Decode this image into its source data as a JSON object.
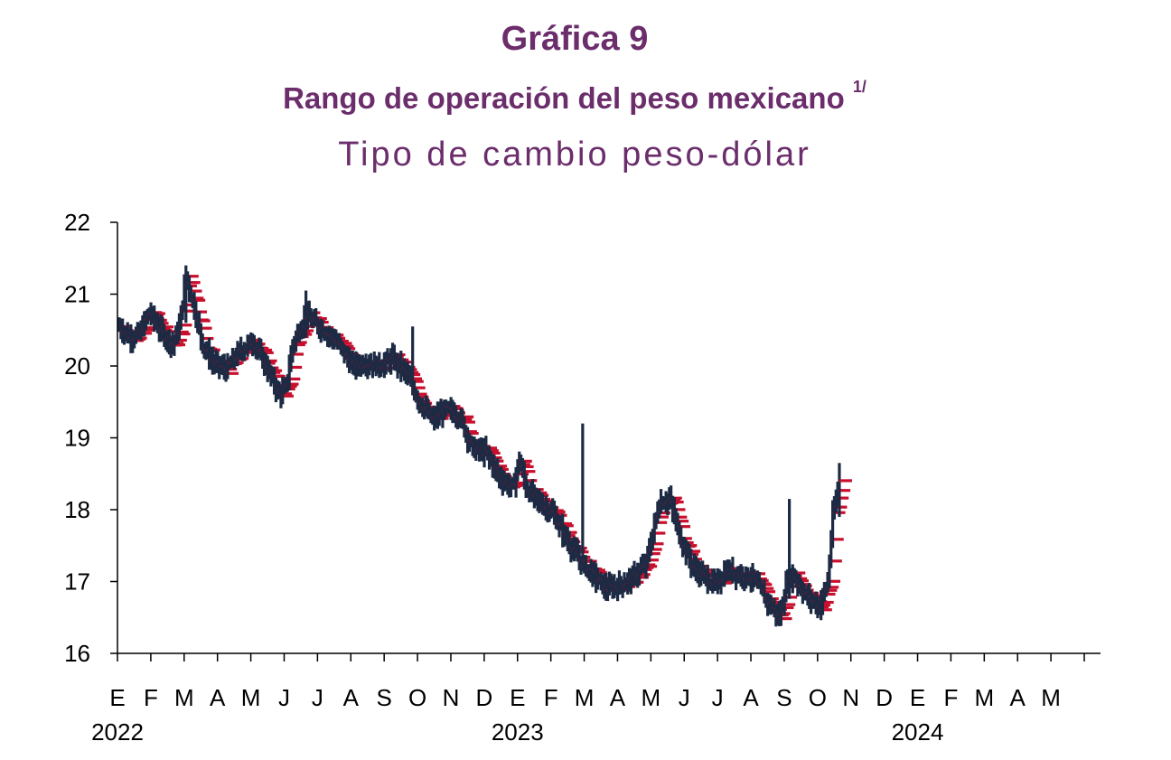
{
  "header": {
    "title": "Gráfica 9",
    "subtitle": "Rango de operación del peso mexicano",
    "subtitle_note": "1/",
    "subtitle2": "Tipo de cambio peso-dólar"
  },
  "colors": {
    "title": "#6b2d6b",
    "range_bar": "#1c2a44",
    "close_tick": "#c8102e"
  },
  "chart_data": {
    "type": "range",
    "ylim": [
      16,
      22
    ],
    "yticks": [
      "16",
      "17",
      "18",
      "19",
      "20",
      "21",
      "22"
    ],
    "month_labels": [
      "E",
      "F",
      "M",
      "A",
      "M",
      "J",
      "J",
      "A",
      "S",
      "O",
      "N",
      "D",
      "E",
      "F",
      "M",
      "A",
      "M",
      "J",
      "J",
      "A",
      "S",
      "O",
      "N",
      "D",
      "E",
      "F",
      "M",
      "A",
      "M"
    ],
    "year_labels": [
      {
        "label": "2022",
        "month_index": 0
      },
      {
        "label": "2023",
        "month_index": 12
      },
      {
        "label": "2024",
        "month_index": 24
      }
    ],
    "anchors": [
      [
        0,
        20.55
      ],
      [
        0.3,
        20.4
      ],
      [
        0.6,
        20.45
      ],
      [
        0.9,
        20.75
      ],
      [
        1.1,
        20.6
      ],
      [
        1.3,
        20.45
      ],
      [
        1.6,
        20.3
      ],
      [
        1.8,
        20.55
      ],
      [
        2.0,
        21.25
      ],
      [
        2.2,
        20.9
      ],
      [
        2.5,
        20.3
      ],
      [
        2.8,
        20.05
      ],
      [
        3.2,
        19.95
      ],
      [
        3.6,
        20.2
      ],
      [
        4.0,
        20.35
      ],
      [
        4.4,
        20.0
      ],
      [
        4.8,
        19.6
      ],
      [
        5.0,
        19.7
      ],
      [
        5.2,
        20.3
      ],
      [
        5.6,
        20.7
      ],
      [
        6.0,
        20.55
      ],
      [
        6.5,
        20.35
      ],
      [
        7.0,
        20.0
      ],
      [
        7.4,
        20.05
      ],
      [
        7.8,
        20.0
      ],
      [
        8.2,
        20.1
      ],
      [
        8.6,
        19.9
      ],
      [
        9.0,
        19.5
      ],
      [
        9.4,
        19.25
      ],
      [
        9.8,
        19.4
      ],
      [
        10.2,
        19.3
      ],
      [
        10.6,
        18.85
      ],
      [
        11.0,
        18.8
      ],
      [
        11.4,
        18.45
      ],
      [
        11.8,
        18.3
      ],
      [
        12.0,
        18.7
      ],
      [
        12.2,
        18.3
      ],
      [
        12.6,
        18.1
      ],
      [
        13.0,
        17.95
      ],
      [
        13.4,
        17.6
      ],
      [
        13.8,
        17.3
      ],
      [
        14.2,
        17.1
      ],
      [
        14.6,
        16.9
      ],
      [
        15.0,
        16.95
      ],
      [
        15.4,
        17.05
      ],
      [
        15.8,
        17.25
      ],
      [
        16.2,
        18.1
      ],
      [
        16.5,
        18.15
      ],
      [
        16.8,
        17.65
      ],
      [
        17.2,
        17.2
      ],
      [
        17.6,
        17.05
      ],
      [
        17.9,
        16.95
      ],
      [
        18.2,
        17.15
      ],
      [
        18.6,
        17.1
      ],
      [
        19.0,
        17.05
      ],
      [
        19.4,
        16.75
      ],
      [
        19.8,
        16.5
      ],
      [
        20.0,
        16.95
      ],
      [
        20.2,
        17.1
      ],
      [
        20.6,
        16.8
      ],
      [
        21.0,
        16.65
      ],
      [
        21.25,
        17.0
      ],
      [
        21.4,
        17.9
      ],
      [
        21.6,
        18.4
      ]
    ],
    "spikes": [
      {
        "month": 2.0,
        "high": 21.4,
        "low": 20.6
      },
      {
        "month": 5.6,
        "high": 21.05,
        "low": 20.4
      },
      {
        "month": 8.8,
        "high": 20.55,
        "low": 19.85
      },
      {
        "month": 13.9,
        "high": 19.2,
        "low": 18.0
      },
      {
        "month": 20.1,
        "high": 18.15,
        "low": 16.9
      },
      {
        "month": 21.6,
        "high": 18.65,
        "low": 17.9
      }
    ]
  }
}
